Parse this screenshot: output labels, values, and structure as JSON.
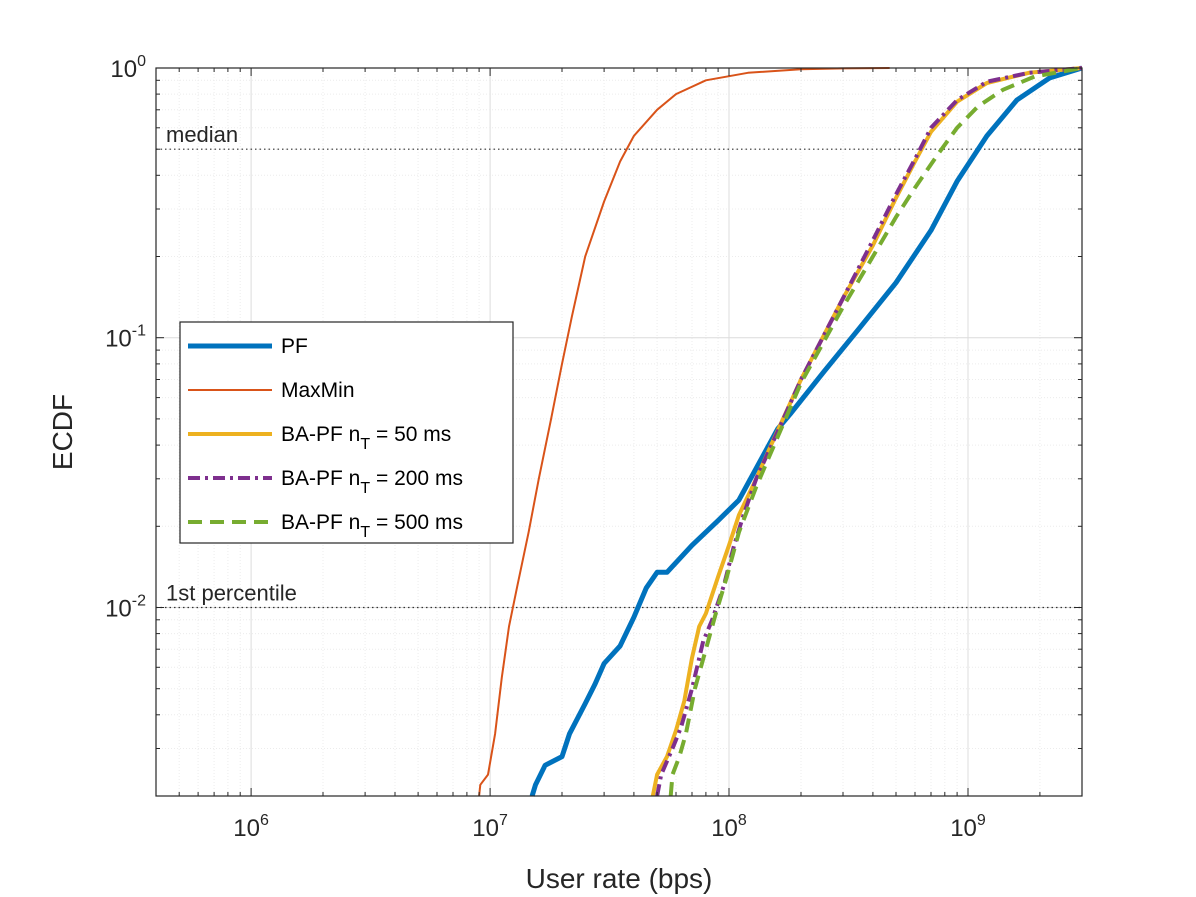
{
  "chart_data": {
    "type": "line",
    "xscale": "log",
    "yscale": "log",
    "xlabel": "User rate (bps)",
    "ylabel": "ECDF",
    "xlim": [
      400000,
      3000000000
    ],
    "ylim": [
      0.002,
      1
    ],
    "grid": true,
    "minor_grid": true,
    "x_ticks": [
      {
        "value": 1000000,
        "base": "10",
        "exp": "6"
      },
      {
        "value": 10000000,
        "base": "10",
        "exp": "7"
      },
      {
        "value": 100000000,
        "base": "10",
        "exp": "8"
      },
      {
        "value": 1000000000,
        "base": "10",
        "exp": "9"
      }
    ],
    "y_ticks": [
      {
        "value": 0.01,
        "base": "10",
        "exp": "-2"
      },
      {
        "value": 0.1,
        "base": "10",
        "exp": "-1"
      },
      {
        "value": 1,
        "base": "10",
        "exp": "0"
      }
    ],
    "reference_lines": [
      {
        "y": 0.5,
        "label": "median"
      },
      {
        "y": 0.01,
        "label": "1st percentile"
      }
    ],
    "legend_position": "center-left",
    "series": [
      {
        "name": "PF",
        "legend_main": "PF",
        "legend_sub": "",
        "legend_tail": "",
        "color": "#0072BD",
        "width": 5,
        "dash": "",
        "points": [
          [
            15000000,
            0.002
          ],
          [
            15500000,
            0.0022
          ],
          [
            17000000,
            0.0026
          ],
          [
            20000000,
            0.0028
          ],
          [
            21500000,
            0.0034
          ],
          [
            25000000,
            0.0044
          ],
          [
            27500000,
            0.0052
          ],
          [
            30000000,
            0.0062
          ],
          [
            35000000,
            0.0072
          ],
          [
            40000000,
            0.0092
          ],
          [
            45000000,
            0.0118
          ],
          [
            50000000,
            0.0135
          ],
          [
            55000000,
            0.0135
          ],
          [
            70000000,
            0.017
          ],
          [
            90000000,
            0.021
          ],
          [
            110000000,
            0.025
          ],
          [
            140000000,
            0.037
          ],
          [
            160000000,
            0.046
          ],
          [
            180000000,
            0.052
          ],
          [
            250000000,
            0.075
          ],
          [
            350000000,
            0.108
          ],
          [
            500000000,
            0.16
          ],
          [
            700000000,
            0.25
          ],
          [
            900000000,
            0.38
          ],
          [
            1200000000,
            0.56
          ],
          [
            1600000000,
            0.76
          ],
          [
            2200000000,
            0.92
          ],
          [
            3000000000,
            1.0
          ]
        ]
      },
      {
        "name": "MaxMin",
        "legend_main": "MaxMin",
        "legend_sub": "",
        "legend_tail": "",
        "color": "#D95319",
        "width": 2,
        "dash": "",
        "points": [
          [
            9000000,
            0.002
          ],
          [
            9100000,
            0.0022
          ],
          [
            9800000,
            0.0024
          ],
          [
            10500000,
            0.0034
          ],
          [
            11200000,
            0.0055
          ],
          [
            12000000,
            0.0085
          ],
          [
            13000000,
            0.012
          ],
          [
            14500000,
            0.019
          ],
          [
            16000000,
            0.03
          ],
          [
            18000000,
            0.05
          ],
          [
            20000000,
            0.08
          ],
          [
            22000000,
            0.12
          ],
          [
            25000000,
            0.2
          ],
          [
            30000000,
            0.32
          ],
          [
            35000000,
            0.45
          ],
          [
            40000000,
            0.56
          ],
          [
            50000000,
            0.7
          ],
          [
            60000000,
            0.8
          ],
          [
            80000000,
            0.9
          ],
          [
            120000000,
            0.96
          ],
          [
            200000000,
            0.99
          ],
          [
            300000000,
            0.997
          ],
          [
            470000000,
            1.0
          ]
        ]
      },
      {
        "name": "BA-PF nT = 50 ms",
        "legend_main": "BA-PF n",
        "legend_sub": "T",
        "legend_tail": " = 50 ms",
        "color": "#EDB120",
        "width": 4,
        "dash": "",
        "points": [
          [
            48000000,
            0.002
          ],
          [
            50000000,
            0.0024
          ],
          [
            55000000,
            0.0028
          ],
          [
            60000000,
            0.0035
          ],
          [
            65000000,
            0.0045
          ],
          [
            70000000,
            0.0065
          ],
          [
            75000000,
            0.0085
          ],
          [
            80000000,
            0.0095
          ],
          [
            90000000,
            0.013
          ],
          [
            100000000,
            0.017
          ],
          [
            110000000,
            0.022
          ],
          [
            130000000,
            0.03
          ],
          [
            150000000,
            0.04
          ],
          [
            200000000,
            0.07
          ],
          [
            300000000,
            0.14
          ],
          [
            400000000,
            0.22
          ],
          [
            500000000,
            0.33
          ],
          [
            600000000,
            0.45
          ],
          [
            700000000,
            0.58
          ],
          [
            900000000,
            0.75
          ],
          [
            1200000000,
            0.88
          ],
          [
            1800000000,
            0.96
          ],
          [
            3000000000,
            1.0
          ]
        ]
      },
      {
        "name": "BA-PF nT = 200 ms",
        "legend_main": "BA-PF n",
        "legend_sub": "T",
        "legend_tail": " = 200 ms",
        "color": "#7E2F8E",
        "width": 4,
        "dash": "12,5,3,5",
        "points": [
          [
            50000000,
            0.002
          ],
          [
            52000000,
            0.0024
          ],
          [
            58000000,
            0.003
          ],
          [
            63000000,
            0.0036
          ],
          [
            70000000,
            0.005
          ],
          [
            78000000,
            0.0075
          ],
          [
            85000000,
            0.009
          ],
          [
            95000000,
            0.012
          ],
          [
            105000000,
            0.017
          ],
          [
            115000000,
            0.022
          ],
          [
            130000000,
            0.03
          ],
          [
            160000000,
            0.045
          ],
          [
            200000000,
            0.07
          ],
          [
            300000000,
            0.14
          ],
          [
            400000000,
            0.23
          ],
          [
            500000000,
            0.34
          ],
          [
            600000000,
            0.46
          ],
          [
            700000000,
            0.6
          ],
          [
            900000000,
            0.76
          ],
          [
            1200000000,
            0.89
          ],
          [
            1800000000,
            0.96
          ],
          [
            3000000000,
            1.0
          ]
        ]
      },
      {
        "name": "BA-PF nT = 500 ms",
        "legend_main": "BA-PF n",
        "legend_sub": "T",
        "legend_tail": " = 500 ms",
        "color": "#77AC30",
        "width": 4,
        "dash": "14,8",
        "points": [
          [
            57000000,
            0.002
          ],
          [
            58000000,
            0.0024
          ],
          [
            62000000,
            0.0028
          ],
          [
            66000000,
            0.0034
          ],
          [
            72000000,
            0.005
          ],
          [
            80000000,
            0.007
          ],
          [
            88000000,
            0.0095
          ],
          [
            98000000,
            0.013
          ],
          [
            110000000,
            0.019
          ],
          [
            130000000,
            0.028
          ],
          [
            160000000,
            0.043
          ],
          [
            200000000,
            0.068
          ],
          [
            300000000,
            0.13
          ],
          [
            400000000,
            0.2
          ],
          [
            500000000,
            0.28
          ],
          [
            600000000,
            0.36
          ],
          [
            750000000,
            0.48
          ],
          [
            900000000,
            0.6
          ],
          [
            1100000000,
            0.72
          ],
          [
            1400000000,
            0.83
          ],
          [
            1900000000,
            0.93
          ],
          [
            3000000000,
            1.0
          ]
        ]
      }
    ]
  }
}
